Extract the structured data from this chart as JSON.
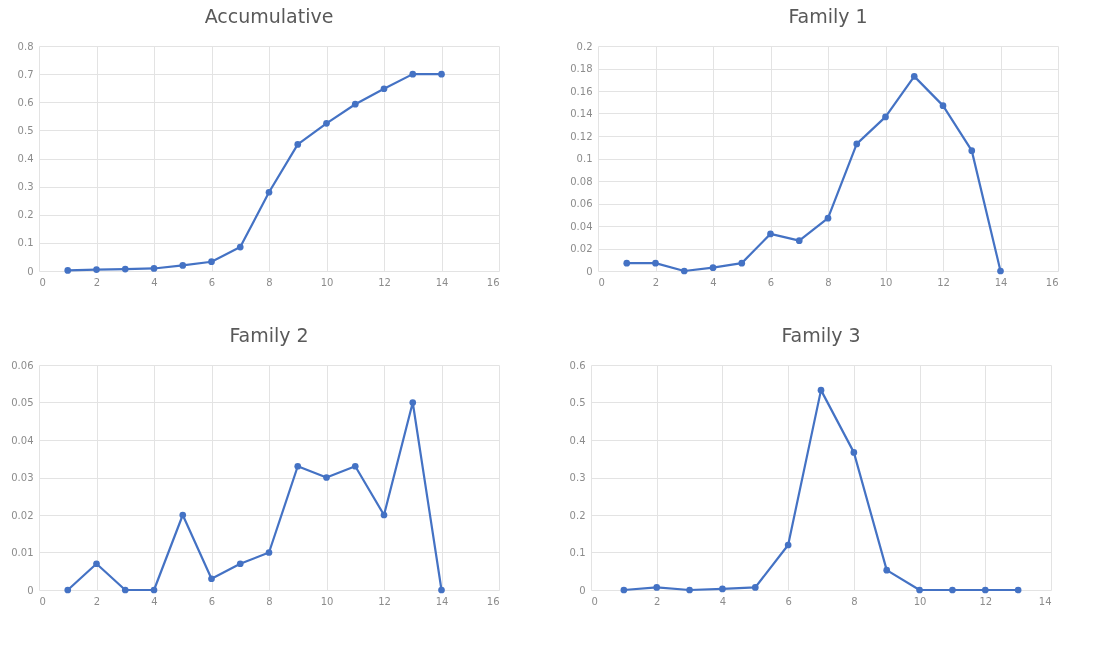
{
  "chart_data": [
    {
      "type": "line",
      "title": "Accumulative",
      "x": [
        1,
        2,
        3,
        4,
        5,
        6,
        7,
        8,
        9,
        10,
        11,
        12,
        13,
        14
      ],
      "series": [
        {
          "color": "#4472c4",
          "values": [
            0.002,
            0.005,
            0.007,
            0.009,
            0.02,
            0.033,
            0.085,
            0.28,
            0.45,
            0.525,
            0.593,
            0.648,
            0.7,
            0.7
          ]
        }
      ],
      "xlim": [
        0,
        16
      ],
      "xticks": [
        0,
        2,
        4,
        6,
        8,
        10,
        12,
        14,
        16
      ],
      "ylim": [
        0,
        0.8
      ],
      "yticks": [
        0,
        0.1,
        0.2,
        0.3,
        0.4,
        0.5,
        0.6,
        0.7,
        0.8
      ],
      "grid": true,
      "marker": "circle",
      "line_style": "solid"
    },
    {
      "type": "line",
      "title": "Family 1",
      "x": [
        1,
        2,
        3,
        4,
        5,
        6,
        7,
        8,
        9,
        10,
        11,
        12,
        13,
        14
      ],
      "series": [
        {
          "color": "#4472c4",
          "values": [
            0.007,
            0.007,
            0,
            0.003,
            0.007,
            0.033,
            0.027,
            0.047,
            0.113,
            0.137,
            0.173,
            0.147,
            0.107,
            0
          ]
        }
      ],
      "xlim": [
        0,
        16
      ],
      "xticks": [
        0,
        2,
        4,
        6,
        8,
        10,
        12,
        14,
        16
      ],
      "ylim": [
        0,
        0.2
      ],
      "yticks": [
        0,
        0.02,
        0.04,
        0.06,
        0.08,
        0.1,
        0.12,
        0.14,
        0.16,
        0.18,
        0.2
      ],
      "grid": true,
      "marker": "circle",
      "line_style": "solid"
    },
    {
      "type": "line",
      "title": "Family 2",
      "x": [
        1,
        2,
        3,
        4,
        5,
        6,
        7,
        8,
        9,
        10,
        11,
        12,
        13,
        14
      ],
      "series": [
        {
          "color": "#4472c4",
          "values": [
            0,
            0.007,
            0,
            0,
            0.02,
            0.003,
            0.007,
            0.01,
            0.033,
            0.03,
            0.033,
            0.02,
            0.05,
            0
          ]
        }
      ],
      "xlim": [
        0,
        16
      ],
      "xticks": [
        0,
        2,
        4,
        6,
        8,
        10,
        12,
        14,
        16
      ],
      "ylim": [
        0,
        0.06
      ],
      "yticks": [
        0,
        0.01,
        0.02,
        0.03,
        0.04,
        0.05,
        0.06
      ],
      "grid": true,
      "marker": "circle",
      "line_style": "solid"
    },
    {
      "type": "line",
      "title": "Family 3",
      "x": [
        1,
        2,
        3,
        4,
        5,
        6,
        7,
        8,
        9,
        10,
        11,
        12,
        13
      ],
      "series": [
        {
          "color": "#4472c4",
          "values": [
            0,
            0.007,
            0,
            0.003,
            0.007,
            0.12,
            0.533,
            0.367,
            0.053,
            0,
            0,
            0,
            0
          ]
        }
      ],
      "xlim": [
        0,
        14
      ],
      "xticks": [
        0,
        2,
        4,
        6,
        8,
        10,
        12,
        14
      ],
      "ylim": [
        0,
        0.6
      ],
      "yticks": [
        0,
        0.1,
        0.2,
        0.3,
        0.4,
        0.5,
        0.6
      ],
      "grid": true,
      "marker": "circle",
      "line_style": "solid"
    }
  ]
}
